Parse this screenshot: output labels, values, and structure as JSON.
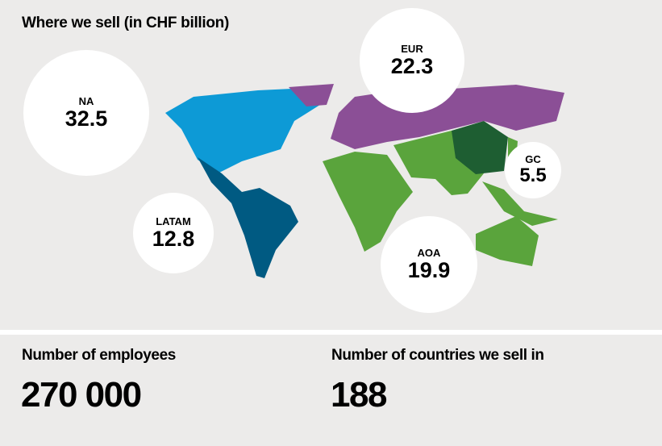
{
  "title": "Where we sell (in CHF billion)",
  "regions": [
    {
      "key": "na",
      "label": "NA",
      "value": "32.5",
      "color": "#0d9ad6"
    },
    {
      "key": "eur",
      "label": "EUR",
      "value": "22.3",
      "color": "#8b4f96"
    },
    {
      "key": "gc",
      "label": "GC",
      "value": "5.5",
      "color": "#1e5e32"
    },
    {
      "key": "latam",
      "label": "LATAM",
      "value": "12.8",
      "color": "#005a82"
    },
    {
      "key": "aoa",
      "label": "AOA",
      "value": "19.9",
      "color": "#5aa43c"
    }
  ],
  "stats": [
    {
      "label": "Number of employees",
      "value": "270 000"
    },
    {
      "label": "Number of countries we sell in",
      "value": "188"
    }
  ]
}
